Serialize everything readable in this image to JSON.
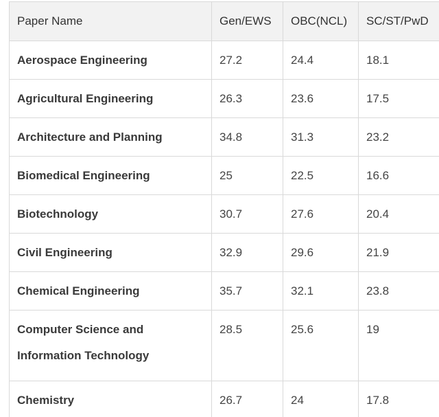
{
  "table": {
    "headers": [
      "Paper Name",
      "Gen/EWS",
      "OBC(NCL)",
      "SC/ST/PwD"
    ],
    "rows": [
      [
        "Aerospace Engineering",
        "27.2",
        "24.4",
        "18.1"
      ],
      [
        "Agricultural Engineering",
        "26.3",
        "23.6",
        "17.5"
      ],
      [
        "Architecture and Planning",
        "34.8",
        "31.3",
        "23.2"
      ],
      [
        "Biomedical Engineering",
        "25",
        "22.5",
        "16.6"
      ],
      [
        "Biotechnology",
        "30.7",
        "27.6",
        "20.4"
      ],
      [
        "Civil Engineering",
        "32.9",
        "29.6",
        "21.9"
      ],
      [
        "Chemical Engineering",
        "35.7",
        "32.1",
        "23.8"
      ],
      [
        "Computer Science and Information Technology",
        "28.5",
        "25.6",
        "19"
      ],
      [
        "Chemistry",
        "26.7",
        "24",
        "17.8"
      ]
    ]
  }
}
